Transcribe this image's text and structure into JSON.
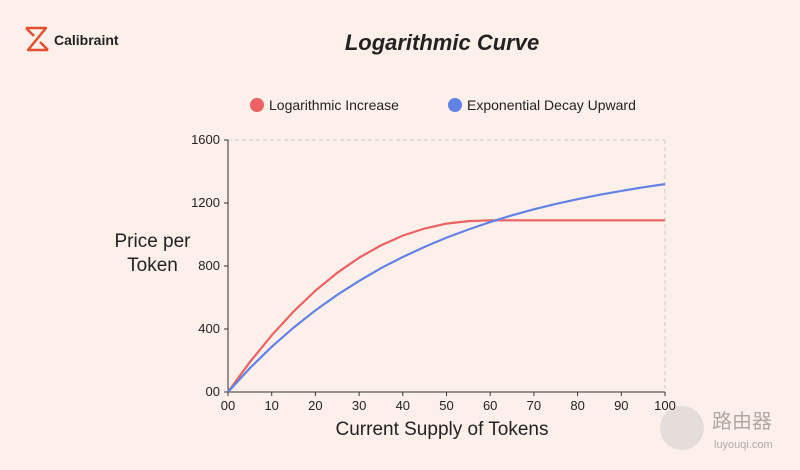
{
  "brand": "Calibraint",
  "watermark": {
    "name": "路由器",
    "site": "luyouqi.com"
  },
  "chart_data": {
    "type": "line",
    "title": "Logarithmic Curve",
    "xlabel": "Current Supply of Tokens",
    "ylabel": "Price per Token",
    "x": [
      0,
      5,
      10,
      15,
      20,
      25,
      30,
      35,
      40,
      45,
      50,
      55,
      60,
      65,
      70,
      75,
      80,
      85,
      90,
      95,
      100
    ],
    "series": [
      {
        "name": "Logarithmic Increase",
        "color": "#ec6262",
        "values": [
          0,
          190,
          360,
          511,
          643,
          757,
          853,
          931,
          993,
          1038,
          1069,
          1085,
          1090,
          1090,
          1090,
          1090,
          1090,
          1090,
          1090,
          1090,
          1090
        ]
      },
      {
        "name": "Exponential Decay Upward",
        "color": "#6283e6",
        "values": [
          0,
          151,
          287,
          409,
          518,
          617,
          705,
          786,
          857,
          921,
          980,
          1032,
          1079,
          1122,
          1160,
          1194,
          1224,
          1252,
          1277,
          1300,
          1320
        ]
      }
    ],
    "xlim": [
      0,
      100
    ],
    "xticks": [
      {
        "value": 0,
        "label": "00"
      },
      10,
      20,
      30,
      40,
      50,
      60,
      70,
      80,
      90,
      100
    ],
    "ylim": [
      0,
      1600
    ],
    "yticks": [
      {
        "value": 0,
        "label": "00"
      },
      400,
      800,
      1200,
      1600
    ],
    "legend": "top"
  }
}
